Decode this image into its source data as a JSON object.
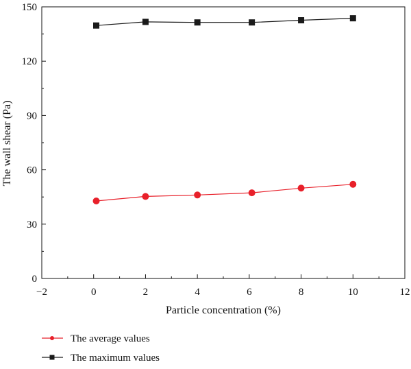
{
  "chart_data": {
    "type": "line",
    "xlabel": "Particle concentration (%)",
    "ylabel": "The wall shear (Pa)",
    "xlim": [
      -2,
      12
    ],
    "ylim": [
      0,
      150
    ],
    "x_ticks": [
      "−2",
      "0",
      "2",
      "4",
      "6",
      "8",
      "10",
      "12"
    ],
    "x_tick_values": [
      -2,
      0,
      2,
      4,
      6,
      8,
      10,
      12
    ],
    "y_ticks": [
      "0",
      "30",
      "60",
      "90",
      "120",
      "150"
    ],
    "y_tick_values": [
      0,
      30,
      60,
      90,
      120,
      150
    ],
    "grid": false,
    "legend_position": "bottom-left",
    "series": [
      {
        "name": "The average values",
        "color": "#e8202a",
        "marker": "circle",
        "x": [
          0.1,
          2,
          4,
          6.1,
          8,
          10
        ],
        "y": [
          42.8,
          45.3,
          46.1,
          47.3,
          49.9,
          52.0
        ]
      },
      {
        "name": "The maximum values",
        "color": "#1a1a1a",
        "marker": "square",
        "x": [
          0.1,
          2,
          4,
          6.1,
          8,
          10
        ],
        "y": [
          139.7,
          141.7,
          141.4,
          141.4,
          142.6,
          143.7
        ]
      }
    ]
  }
}
